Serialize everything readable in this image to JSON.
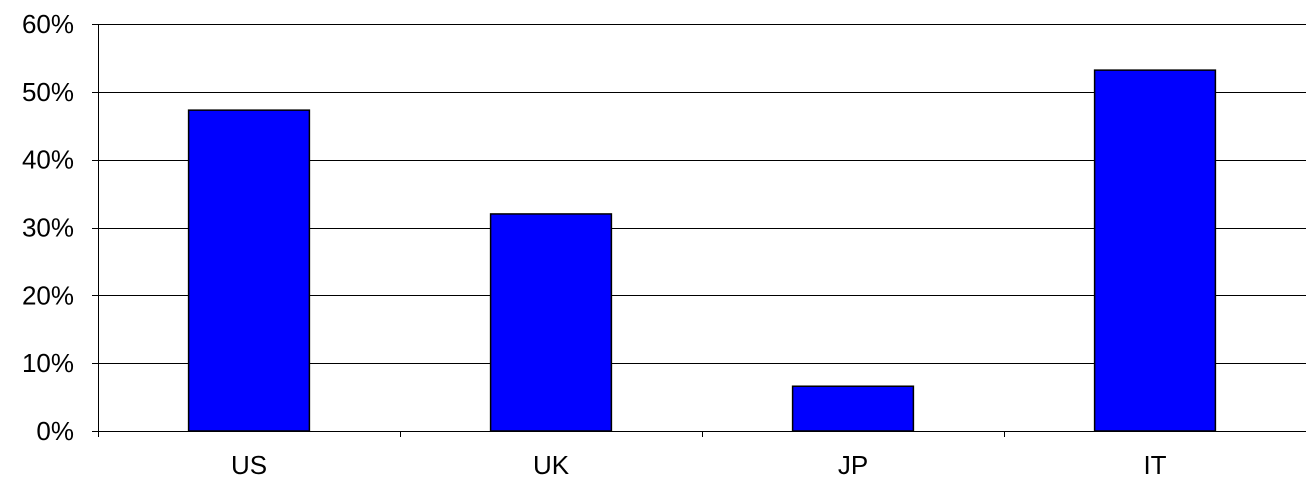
{
  "chart_data": {
    "type": "bar",
    "title": "",
    "xlabel": "",
    "ylabel": "",
    "categories": [
      "US",
      "UK",
      "JP",
      "IT"
    ],
    "values": [
      0.473,
      0.32,
      0.066,
      0.532
    ],
    "ylim": [
      0,
      0.6
    ],
    "yticks": [
      0,
      0.1,
      0.2,
      0.3,
      0.4,
      0.5,
      0.6
    ],
    "ytick_labels": [
      "0%",
      "10%",
      "20%",
      "30%",
      "40%",
      "50%",
      "60%"
    ],
    "grid": true,
    "legend": "none",
    "bar_color": "#0000FF",
    "bar_edge_color": "#000000"
  }
}
